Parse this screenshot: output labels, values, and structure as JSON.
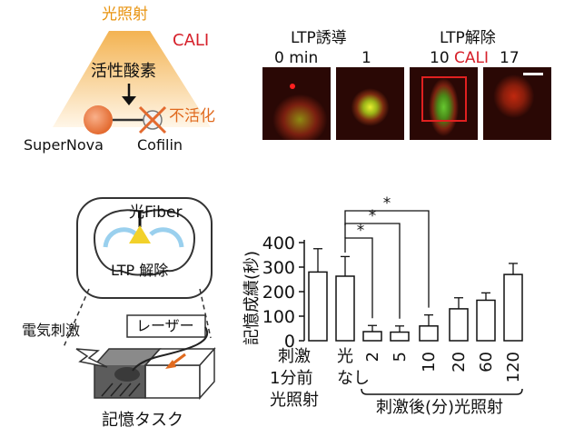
{
  "panel_a": {
    "light_label": "光照射",
    "cali_label": "CALI",
    "ros_label": "活性酸素",
    "inactivation_label": "不活化",
    "protein_left": "SuperNova",
    "protein_right": "Cofilin"
  },
  "panel_b": {
    "group_ltp_induction": "LTP誘導",
    "group_ltp_erase": "LTP解除",
    "timepoints": [
      "0 min",
      "1",
      "10",
      "17"
    ],
    "cali_marker": "CALI"
  },
  "panel_c": {
    "light_fiber_label": "光Fiber",
    "ltp_erase_label": "LTP 解除",
    "stimulation_label": "電気刺激",
    "laser_label": "レーザー",
    "memory_task_label": "記憶タスク"
  },
  "chart_data": {
    "type": "bar",
    "ylabel": "記憶成績(秒)",
    "ylim": [
      0,
      400
    ],
    "yticks": [
      0,
      100,
      200,
      300,
      400
    ],
    "categories": [
      "刺激1分前光照射",
      "光なし",
      "2",
      "5",
      "10",
      "20",
      "60",
      "120"
    ],
    "values": [
      280,
      263,
      37,
      35,
      60,
      130,
      165,
      270
    ],
    "errors": [
      95,
      80,
      25,
      25,
      45,
      45,
      30,
      45
    ],
    "x_group_label": "刺激後(分)光照射",
    "first_label_lines": [
      "刺激",
      "1分前",
      "光照射"
    ],
    "second_label_lines": [
      "光",
      "なし"
    ],
    "significance": [
      {
        "from": 1,
        "to": 2,
        "label": "*"
      },
      {
        "from": 1,
        "to": 3,
        "label": "*"
      },
      {
        "from": 1,
        "to": 4,
        "label": "*"
      }
    ]
  }
}
